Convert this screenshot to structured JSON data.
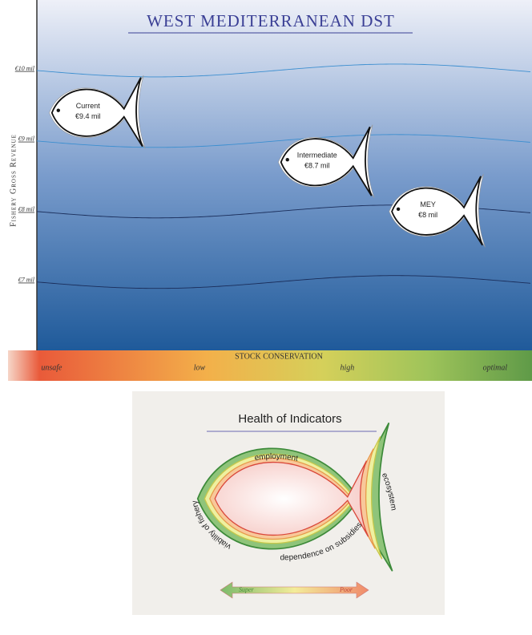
{
  "chart_data": {
    "type": "scatter",
    "title": "WEST MEDITERRANEAN DST",
    "ylabel": "Fishery Gross Revenue",
    "xlabel": "STOCK CONSERVATION",
    "ylim": [
      6.03,
      11
    ],
    "yticks": [
      {
        "value": 7,
        "label": "€7 mil"
      },
      {
        "value": 8,
        "label": "€8 mil"
      },
      {
        "value": 9,
        "label": "€9 mil"
      },
      {
        "value": 10,
        "label": "€10 mil"
      }
    ],
    "xlim": [
      -0.1,
      3.25
    ],
    "xticks": [
      {
        "value": 0,
        "label": "unsafe"
      },
      {
        "value": 1,
        "label": "low"
      },
      {
        "value": 2,
        "label": "high"
      },
      {
        "value": 3,
        "label": "optimal"
      }
    ],
    "grid": true,
    "series": [
      {
        "name": "Current",
        "x": [
          0.3
        ],
        "values": [
          9.4
        ],
        "value_labels": [
          "€9.4 mil"
        ]
      },
      {
        "name": "Intermediate",
        "x": [
          1.85
        ],
        "values": [
          8.7
        ],
        "value_labels": [
          "€8.7 mil"
        ]
      },
      {
        "name": "MEY",
        "x": [
          2.6
        ],
        "values": [
          8
        ],
        "value_labels": [
          "€8 mil"
        ]
      }
    ]
  },
  "health_panel": {
    "title": "Health of Indicators",
    "indicators": [
      "employment",
      "ecosystem",
      "dependence on subsidies",
      "viability of fishery"
    ],
    "scale": {
      "left": "Super",
      "right": "Poor"
    }
  }
}
